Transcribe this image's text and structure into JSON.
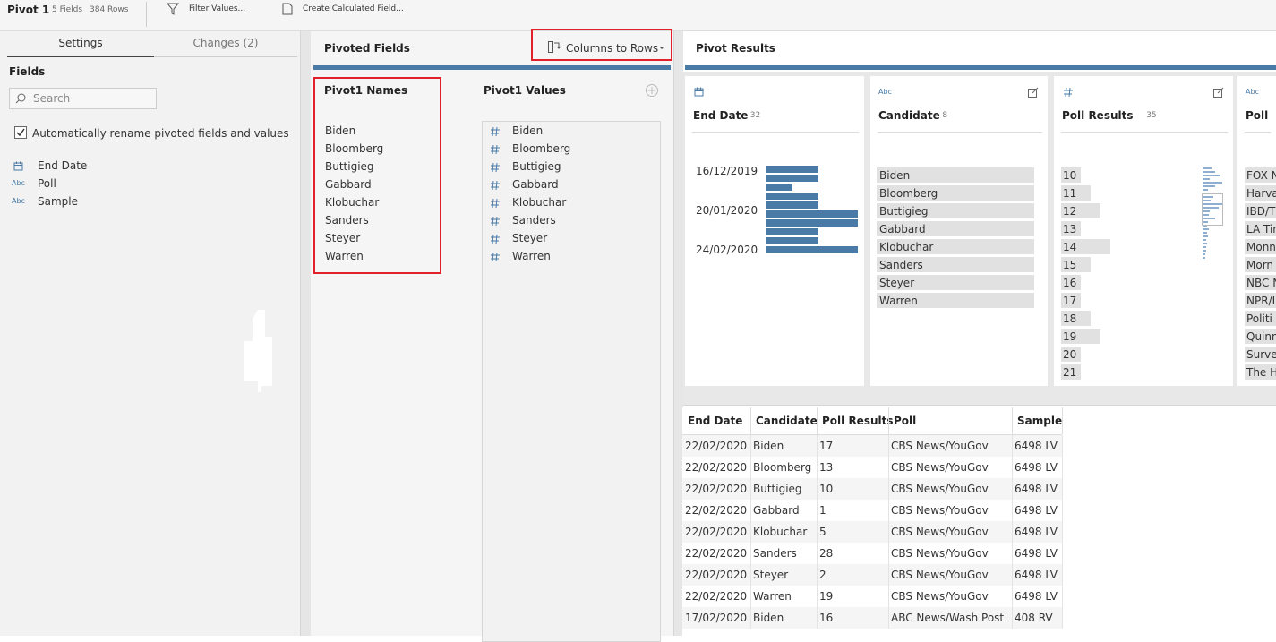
{
  "toolbar": {
    "title": "Pivot 1",
    "fields": "5 Fields",
    "rows": "384 Rows",
    "filter": "Filter Values...",
    "calc": "Create Calculated Field..."
  },
  "settings_panel": {
    "tabs": [
      "Settings",
      "Changes (2)"
    ],
    "fields_heading": "Fields",
    "search_placeholder": "Search",
    "auto_rename": {
      "label": "Automatically rename pivoted fields and values",
      "checked": true
    },
    "fields": [
      {
        "type": "date",
        "name": "End Date"
      },
      {
        "type": "string",
        "icon": "Abc",
        "name": "Poll"
      },
      {
        "type": "string",
        "icon": "Abc",
        "name": "Sample"
      }
    ]
  },
  "pivoted_fields": {
    "title": "Pivoted Fields",
    "action": "Columns to Rows",
    "names_heading": "Pivot1 Names",
    "names": [
      "Biden",
      "Bloomberg",
      "Buttigieg",
      "Gabbard",
      "Klobuchar",
      "Sanders",
      "Steyer",
      "Warren"
    ],
    "values_heading": "Pivot1 Values",
    "values": [
      "Biden",
      "Bloomberg",
      "Buttigieg",
      "Gabbard",
      "Klobuchar",
      "Sanders",
      "Steyer",
      "Warren"
    ]
  },
  "pivot_results": {
    "title": "Pivot Results",
    "cards": [
      {
        "type": "date",
        "name": "End Date",
        "count": 32,
        "axis_labels": [
          "16/12/2019",
          "20/01/2020",
          "24/02/2020"
        ],
        "bars": [
          4,
          4,
          2,
          4,
          4,
          7,
          7,
          4,
          4,
          7
        ]
      },
      {
        "type": "string",
        "icon": "Abc",
        "name": "Candidate",
        "count": 8,
        "values": [
          "Biden",
          "Bloomberg",
          "Buttigieg",
          "Gabbard",
          "Klobuchar",
          "Sanders",
          "Steyer",
          "Warren"
        ],
        "bars": [
          48,
          48,
          48,
          48,
          48,
          48,
          48,
          48
        ]
      },
      {
        "type": "number",
        "name": "Poll Results",
        "count": 35,
        "values": [
          10,
          11,
          12,
          13,
          14,
          15,
          16,
          17,
          18,
          19,
          20,
          21
        ],
        "bars": [
          2,
          3,
          4,
          2,
          5,
          3,
          2,
          2,
          3,
          4,
          2,
          2
        ]
      },
      {
        "type": "string",
        "icon": "Abc",
        "name": "Poll",
        "values": [
          "FOX N",
          "Harva",
          "IBD/T",
          "LA Tir",
          "Monn",
          "Morn",
          "NBC N",
          "NPR/I",
          "Politi",
          "Quinn",
          "Surve",
          "The H"
        ]
      }
    ]
  },
  "table": {
    "columns": [
      "End Date",
      "Candidate",
      "Poll Results",
      "Poll",
      "Sample"
    ],
    "rows": [
      [
        "22/02/2020",
        "Biden",
        17,
        "CBS News/YouGov",
        "6498 LV"
      ],
      [
        "22/02/2020",
        "Bloomberg",
        13,
        "CBS News/YouGov",
        "6498 LV"
      ],
      [
        "22/02/2020",
        "Buttigieg",
        10,
        "CBS News/YouGov",
        "6498 LV"
      ],
      [
        "22/02/2020",
        "Gabbard",
        1,
        "CBS News/YouGov",
        "6498 LV"
      ],
      [
        "22/02/2020",
        "Klobuchar",
        5,
        "CBS News/YouGov",
        "6498 LV"
      ],
      [
        "22/02/2020",
        "Sanders",
        28,
        "CBS News/YouGov",
        "6498 LV"
      ],
      [
        "22/02/2020",
        "Steyer",
        2,
        "CBS News/YouGov",
        "6498 LV"
      ],
      [
        "22/02/2020",
        "Warren",
        19,
        "CBS News/YouGov",
        "6498 LV"
      ],
      [
        "17/02/2020",
        "Biden",
        16,
        "ABC News/Wash Post",
        "408 RV"
      ]
    ]
  }
}
